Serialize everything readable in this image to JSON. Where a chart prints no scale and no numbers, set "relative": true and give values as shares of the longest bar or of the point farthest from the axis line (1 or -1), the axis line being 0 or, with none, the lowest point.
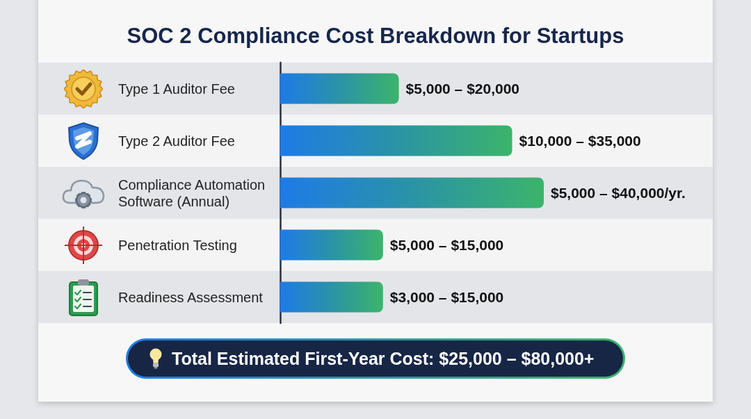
{
  "chart_data": {
    "type": "bar",
    "orientation": "horizontal",
    "relative": true,
    "title": "SOC 2 Compliance Cost Breakdown for Startups",
    "categories": [
      "Type 1 Auditor Fee",
      "Type 2 Auditor Fee",
      "Compliance Automation Software (Annual)",
      "Penetration Testing",
      "Readiness Assessment"
    ],
    "values": [
      0.45,
      0.88,
      1,
      0.39,
      0.39
    ],
    "color": "#2b93a6",
    "annotations": [
      {
        "text": "$5,000 – $20,000",
        "x": 0.45,
        "y": "Type 1 Auditor Fee"
      },
      {
        "text": "$10,000 – $35,000",
        "x": 0.88,
        "y": "Type 2 Auditor Fee"
      },
      {
        "text": "$5,000 – $40,000/yr.",
        "x": 1,
        "y": "Compliance Automation Software (Annual)"
      },
      {
        "text": "$5,000 – $15,000",
        "x": 0.39,
        "y": "Penetration Testing"
      },
      {
        "text": "$3,000 – $15,000",
        "x": 0.39,
        "y": "Readiness Assessment"
      },
      "Total Estimated First-Year Cost: $25,000 – $80,000+"
    ]
  }
}
